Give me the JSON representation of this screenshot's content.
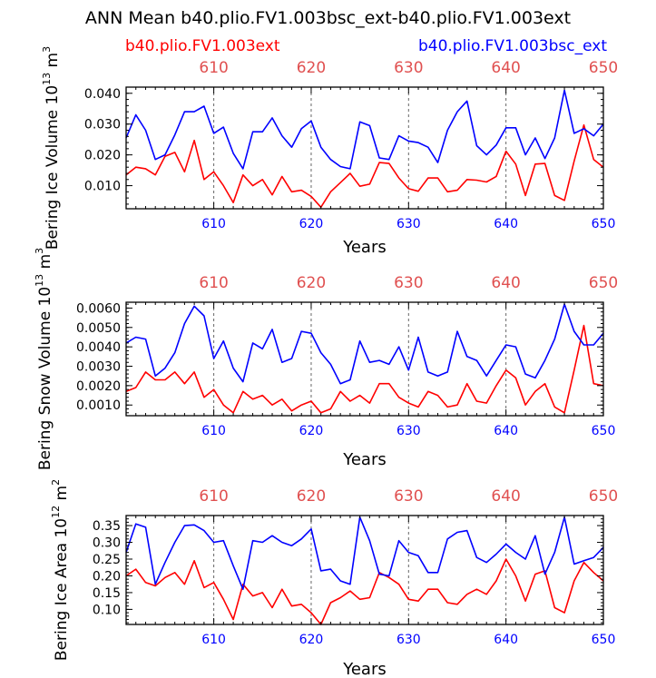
{
  "header": {
    "title": "ANN Mean b40.plio.FV1.003bsc_ext-b40.plio.FV1.003ext",
    "legend_red": "b40.plio.FV1.003ext",
    "legend_blue": "b40.plio.FV1.003bsc_ext"
  },
  "colors": {
    "red": "#ff0000",
    "blue": "#0000ff",
    "axis": "#000000",
    "grid": "#666666",
    "top_tick": "#e05050"
  },
  "chart_data": [
    {
      "type": "line",
      "ylabel_base": "Bering Ice Volume 10",
      "ylabel_exp": "13",
      "ylabel_unit": " m",
      "ylabel_unit_exp": "3",
      "xlabel": "Years",
      "xlim": [
        601,
        650
      ],
      "ylim": [
        0.0025,
        0.042
      ],
      "xticks": [
        610,
        620,
        630,
        640,
        650
      ],
      "yticks": [
        0.01,
        0.02,
        0.03,
        0.04
      ],
      "ytick_labels": [
        "0.010",
        "0.020",
        "0.030",
        "0.040"
      ],
      "x": [
        601,
        602,
        603,
        604,
        605,
        606,
        607,
        608,
        609,
        610,
        611,
        612,
        613,
        614,
        615,
        616,
        617,
        618,
        619,
        620,
        621,
        622,
        623,
        624,
        625,
        626,
        627,
        628,
        629,
        630,
        631,
        632,
        633,
        634,
        635,
        636,
        637,
        638,
        639,
        640,
        641,
        642,
        643,
        644,
        645,
        646,
        647,
        648,
        649,
        650
      ],
      "series": [
        {
          "name": "b40.plio.FV1.003ext",
          "color": "red",
          "values": [
            0.0135,
            0.016,
            0.0155,
            0.0135,
            0.0195,
            0.0208,
            0.0145,
            0.0247,
            0.012,
            0.0145,
            0.01,
            0.0045,
            0.0135,
            0.01,
            0.012,
            0.007,
            0.013,
            0.008,
            0.0085,
            0.0065,
            0.003,
            0.008,
            0.011,
            0.014,
            0.0098,
            0.0105,
            0.0175,
            0.0172,
            0.0125,
            0.009,
            0.0082,
            0.0125,
            0.0125,
            0.008,
            0.0085,
            0.012,
            0.0118,
            0.0112,
            0.013,
            0.0212,
            0.017,
            0.0068,
            0.017,
            0.0172,
            0.0068,
            0.0052,
            0.018,
            0.0297,
            0.0185,
            0.016
          ]
        },
        {
          "name": "b40.plio.FV1.003bsc_ext",
          "color": "blue",
          "values": [
            0.0255,
            0.033,
            0.028,
            0.0185,
            0.02,
            0.0265,
            0.034,
            0.034,
            0.0358,
            0.027,
            0.029,
            0.0205,
            0.0155,
            0.0275,
            0.0275,
            0.032,
            0.0262,
            0.0225,
            0.0285,
            0.031,
            0.0225,
            0.0185,
            0.0162,
            0.0155,
            0.0307,
            0.0295,
            0.019,
            0.0185,
            0.0262,
            0.0245,
            0.024,
            0.0225,
            0.0175,
            0.028,
            0.034,
            0.0375,
            0.023,
            0.02,
            0.0232,
            0.0288,
            0.0288,
            0.02,
            0.0255,
            0.0188,
            0.0255,
            0.041,
            0.027,
            0.0285,
            0.0262,
            0.03
          ]
        }
      ]
    },
    {
      "type": "line",
      "ylabel_base": "Bering Snow Volume 10",
      "ylabel_exp": "13",
      "ylabel_unit": " m",
      "ylabel_unit_exp": "3",
      "xlabel": "Years",
      "xlim": [
        601,
        650
      ],
      "ylim": [
        0.00045,
        0.0063
      ],
      "xticks": [
        610,
        620,
        630,
        640,
        650
      ],
      "yticks": [
        0.001,
        0.002,
        0.003,
        0.004,
        0.005,
        0.006
      ],
      "ytick_labels": [
        "0.0010",
        "0.0020",
        "0.0030",
        "0.0040",
        "0.0050",
        "0.0060"
      ],
      "x": [
        601,
        602,
        603,
        604,
        605,
        606,
        607,
        608,
        609,
        610,
        611,
        612,
        613,
        614,
        615,
        616,
        617,
        618,
        619,
        620,
        621,
        622,
        623,
        624,
        625,
        626,
        627,
        628,
        629,
        630,
        631,
        632,
        633,
        634,
        635,
        636,
        637,
        638,
        639,
        640,
        641,
        642,
        643,
        644,
        645,
        646,
        647,
        648,
        649,
        650
      ],
      "series": [
        {
          "name": "b40.plio.FV1.003ext",
          "color": "red",
          "values": [
            0.0017,
            0.0019,
            0.0027,
            0.0023,
            0.0023,
            0.0027,
            0.0021,
            0.0027,
            0.0014,
            0.0018,
            0.001,
            0.0006,
            0.0017,
            0.0013,
            0.0015,
            0.001,
            0.0013,
            0.0007,
            0.001,
            0.0012,
            0.0006,
            0.0008,
            0.0017,
            0.0012,
            0.0015,
            0.0011,
            0.0021,
            0.0021,
            0.0014,
            0.0011,
            0.0009,
            0.0017,
            0.0015,
            0.0009,
            0.001,
            0.0021,
            0.0012,
            0.0011,
            0.002,
            0.0028,
            0.0024,
            0.001,
            0.0017,
            0.0021,
            0.0009,
            0.0006,
            0.0028,
            0.0051,
            0.0021,
            0.002
          ]
        },
        {
          "name": "b40.plio.FV1.003bsc_ext",
          "color": "blue",
          "values": [
            0.0042,
            0.0045,
            0.0044,
            0.0025,
            0.0029,
            0.0037,
            0.0052,
            0.0061,
            0.0056,
            0.0034,
            0.0043,
            0.0029,
            0.0022,
            0.0042,
            0.0039,
            0.0049,
            0.0032,
            0.0034,
            0.0048,
            0.0047,
            0.0037,
            0.0031,
            0.0021,
            0.0023,
            0.0043,
            0.0032,
            0.0033,
            0.0031,
            0.004,
            0.0028,
            0.0045,
            0.0027,
            0.0025,
            0.0027,
            0.0048,
            0.0035,
            0.0033,
            0.0025,
            0.0033,
            0.0041,
            0.004,
            0.0026,
            0.0024,
            0.0033,
            0.0044,
            0.0062,
            0.0048,
            0.0041,
            0.0041,
            0.0047
          ]
        }
      ]
    },
    {
      "type": "line",
      "ylabel_base": "Bering Ice Area 10",
      "ylabel_exp": "12",
      "ylabel_unit": " m",
      "ylabel_unit_exp": "2",
      "xlabel": "Years",
      "xlim": [
        601,
        650
      ],
      "ylim": [
        0.055,
        0.38
      ],
      "xticks": [
        610,
        620,
        630,
        640,
        650
      ],
      "yticks": [
        0.1,
        0.15,
        0.2,
        0.25,
        0.3,
        0.35
      ],
      "ytick_labels": [
        "0.10",
        "0.15",
        "0.20",
        "0.25",
        "0.30",
        "0.35"
      ],
      "x": [
        601,
        602,
        603,
        604,
        605,
        606,
        607,
        608,
        609,
        610,
        611,
        612,
        613,
        614,
        615,
        616,
        617,
        618,
        619,
        620,
        621,
        622,
        623,
        624,
        625,
        626,
        627,
        628,
        629,
        630,
        631,
        632,
        633,
        634,
        635,
        636,
        637,
        638,
        639,
        640,
        641,
        642,
        643,
        644,
        645,
        646,
        647,
        648,
        649,
        650
      ],
      "series": [
        {
          "name": "b40.plio.FV1.003ext",
          "color": "red",
          "values": [
            0.2,
            0.22,
            0.18,
            0.17,
            0.195,
            0.21,
            0.175,
            0.245,
            0.165,
            0.18,
            0.13,
            0.07,
            0.175,
            0.14,
            0.15,
            0.105,
            0.16,
            0.11,
            0.115,
            0.09,
            0.055,
            0.12,
            0.135,
            0.155,
            0.13,
            0.135,
            0.21,
            0.195,
            0.175,
            0.13,
            0.125,
            0.16,
            0.16,
            0.12,
            0.115,
            0.145,
            0.16,
            0.145,
            0.185,
            0.25,
            0.2,
            0.125,
            0.205,
            0.215,
            0.105,
            0.09,
            0.185,
            0.24,
            0.21,
            0.185
          ]
        },
        {
          "name": "b40.plio.FV1.003bsc_ext",
          "color": "blue",
          "values": [
            0.27,
            0.355,
            0.345,
            0.175,
            0.24,
            0.3,
            0.35,
            0.352,
            0.335,
            0.3,
            0.305,
            0.23,
            0.16,
            0.305,
            0.3,
            0.32,
            0.3,
            0.29,
            0.31,
            0.34,
            0.215,
            0.22,
            0.185,
            0.175,
            0.375,
            0.305,
            0.205,
            0.2,
            0.305,
            0.27,
            0.26,
            0.21,
            0.21,
            0.31,
            0.33,
            0.335,
            0.255,
            0.24,
            0.265,
            0.295,
            0.27,
            0.25,
            0.32,
            0.205,
            0.27,
            0.375,
            0.235,
            0.245,
            0.255,
            0.285
          ]
        }
      ]
    }
  ]
}
